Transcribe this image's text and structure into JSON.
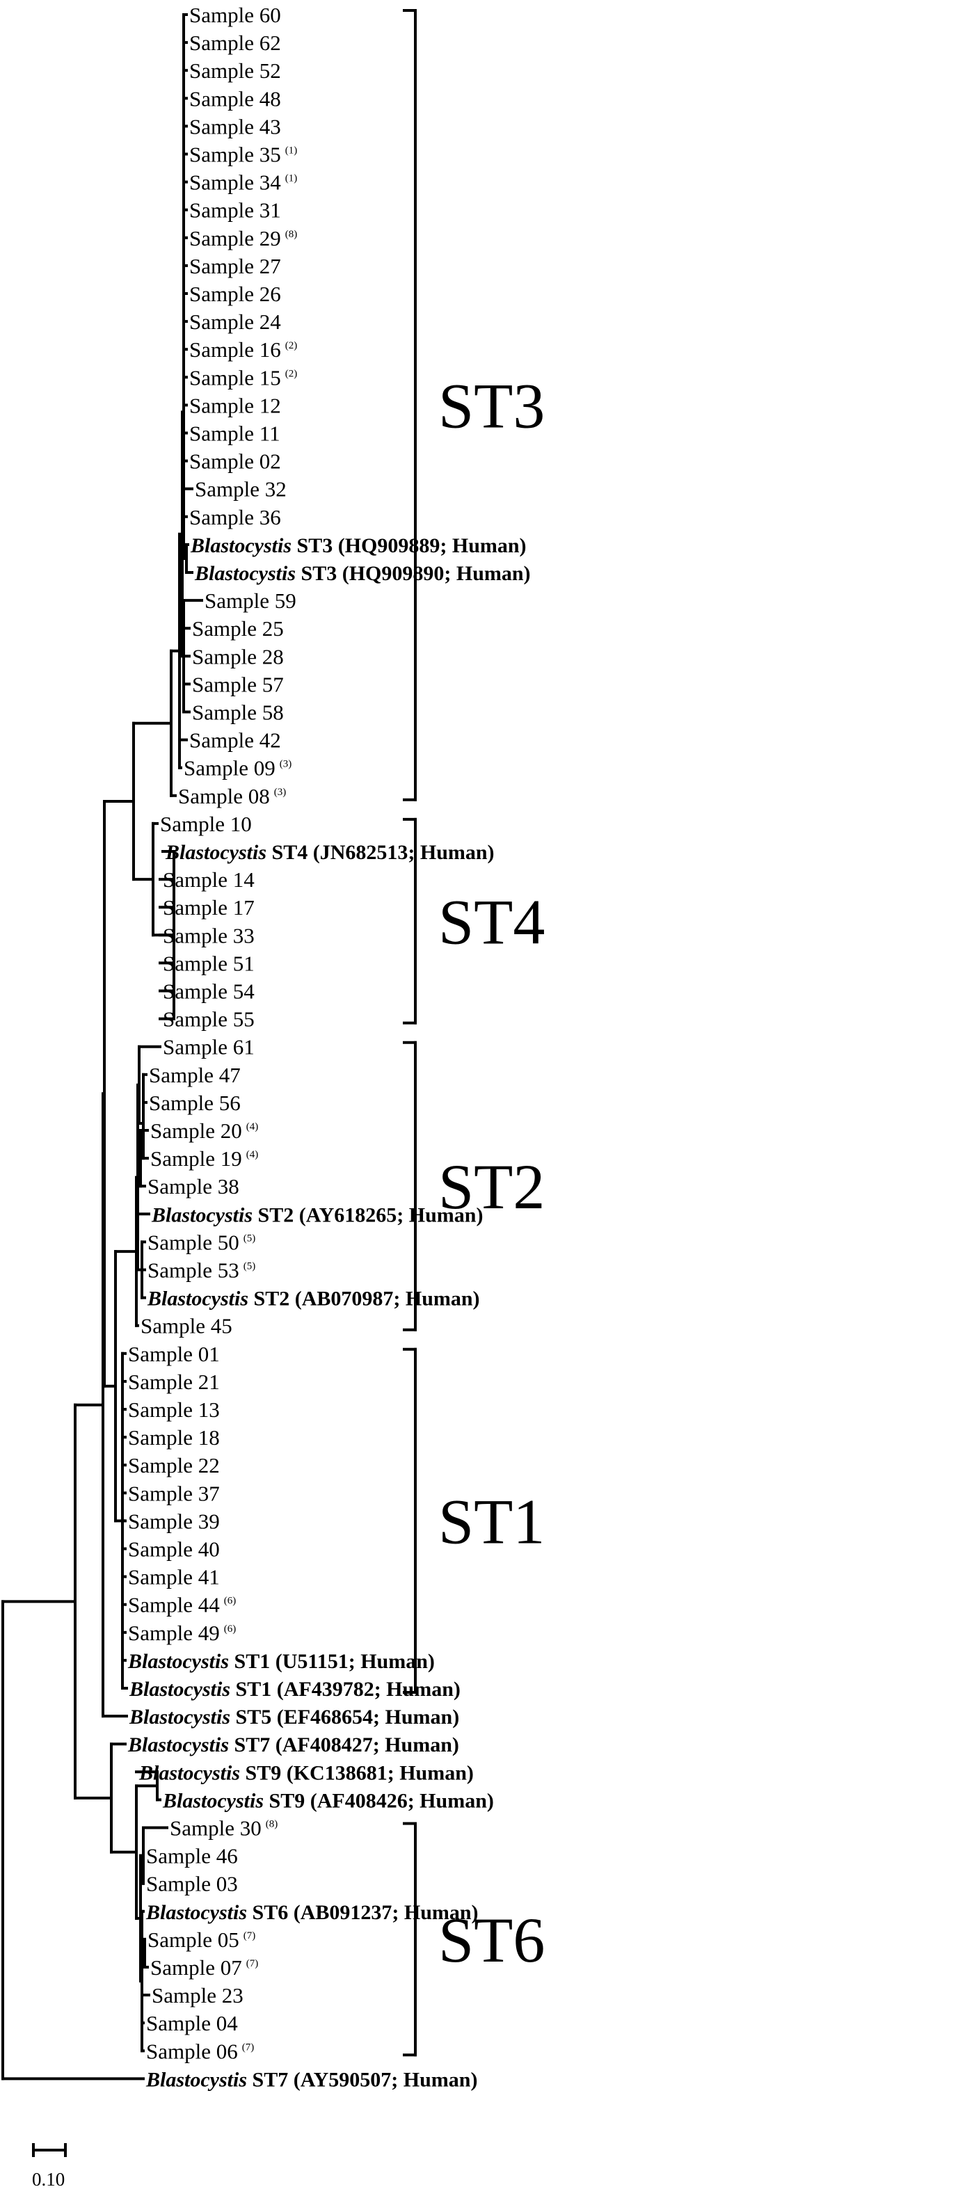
{
  "genus": "Blastocystis",
  "leaves": [
    {
      "label": "Sample 60"
    },
    {
      "label": "Sample 62"
    },
    {
      "label": "Sample 52"
    },
    {
      "label": "Sample 48"
    },
    {
      "label": "Sample 43"
    },
    {
      "label": "Sample 35",
      "note": "(1)"
    },
    {
      "label": "Sample 34",
      "note": "(1)"
    },
    {
      "label": "Sample 31"
    },
    {
      "label": "Sample 29",
      "note": "(8)"
    },
    {
      "label": "Sample 27"
    },
    {
      "label": "Sample 26"
    },
    {
      "label": "Sample 24"
    },
    {
      "label": "Sample 16",
      "note": "(2)"
    },
    {
      "label": "Sample 15",
      "note": "(2)"
    },
    {
      "label": "Sample 12"
    },
    {
      "label": "Sample 11"
    },
    {
      "label": "Sample 02"
    },
    {
      "label": "Sample 32"
    },
    {
      "label": "Sample 36"
    },
    {
      "ref": true,
      "label": "ST3 (HQ909889; Human)"
    },
    {
      "ref": true,
      "label": "ST3 (HQ909890; Human)"
    },
    {
      "label": "Sample 59"
    },
    {
      "label": "Sample 25"
    },
    {
      "label": "Sample 28"
    },
    {
      "label": "Sample 57"
    },
    {
      "label": "Sample 58"
    },
    {
      "label": "Sample 42"
    },
    {
      "label": "Sample 09",
      "note": "(3)"
    },
    {
      "label": "Sample 08",
      "note": "(3)"
    },
    {
      "label": "Sample 10"
    },
    {
      "ref": true,
      "label": "ST4 (JN682513; Human)"
    },
    {
      "label": "Sample 14"
    },
    {
      "label": "Sample 17"
    },
    {
      "label": "Sample 33"
    },
    {
      "label": "Sample 51"
    },
    {
      "label": "Sample 54"
    },
    {
      "label": "Sample 55"
    },
    {
      "label": "Sample 61"
    },
    {
      "label": "Sample 47"
    },
    {
      "label": "Sample 56"
    },
    {
      "label": "Sample 20",
      "note": "(4)"
    },
    {
      "label": "Sample 19",
      "note": "(4)"
    },
    {
      "label": "Sample 38"
    },
    {
      "ref": true,
      "label": "ST2 (AY618265; Human)"
    },
    {
      "label": "Sample 50",
      "note": "(5)"
    },
    {
      "label": "Sample 53",
      "note": "(5)"
    },
    {
      "ref": true,
      "label": "ST2 (AB070987; Human)"
    },
    {
      "label": "Sample 45"
    },
    {
      "label": "Sample 01"
    },
    {
      "label": "Sample 21"
    },
    {
      "label": "Sample 13"
    },
    {
      "label": "Sample 18"
    },
    {
      "label": "Sample 22"
    },
    {
      "label": "Sample 37"
    },
    {
      "label": "Sample 39"
    },
    {
      "label": "Sample 40"
    },
    {
      "label": "Sample 41"
    },
    {
      "label": "Sample 44",
      "note": "(6)"
    },
    {
      "label": "Sample 49",
      "note": "(6)"
    },
    {
      "ref": true,
      "label": "ST1 (U51151; Human)"
    },
    {
      "ref": true,
      "label": "ST1 (AF439782; Human)"
    },
    {
      "ref": true,
      "label": "ST5 (EF468654; Human)"
    },
    {
      "ref": true,
      "label": "ST7 (AF408427; Human)"
    },
    {
      "ref": true,
      "label": "ST9 (KC138681; Human)"
    },
    {
      "ref": true,
      "label": "ST9 (AF408426; Human)"
    },
    {
      "label": "Sample 30",
      "note": "(8)"
    },
    {
      "label": "Sample 46"
    },
    {
      "label": "Sample 03"
    },
    {
      "ref": true,
      "label": "ST6 (AB091237; Human)"
    },
    {
      "label": "Sample 05",
      "note": "(7)"
    },
    {
      "label": "Sample 07",
      "note": "(7)"
    },
    {
      "label": "Sample 23"
    },
    {
      "label": "Sample 04"
    },
    {
      "label": "Sample 06",
      "note": "(7)"
    },
    {
      "ref": true,
      "label": "ST7 (AY590507; Human)"
    }
  ],
  "clades": [
    {
      "label": "ST3"
    },
    {
      "label": "ST4"
    },
    {
      "label": "ST2"
    },
    {
      "label": "ST1"
    },
    {
      "label": "ST6"
    }
  ],
  "scale_bar": {
    "label": "0.10"
  }
}
